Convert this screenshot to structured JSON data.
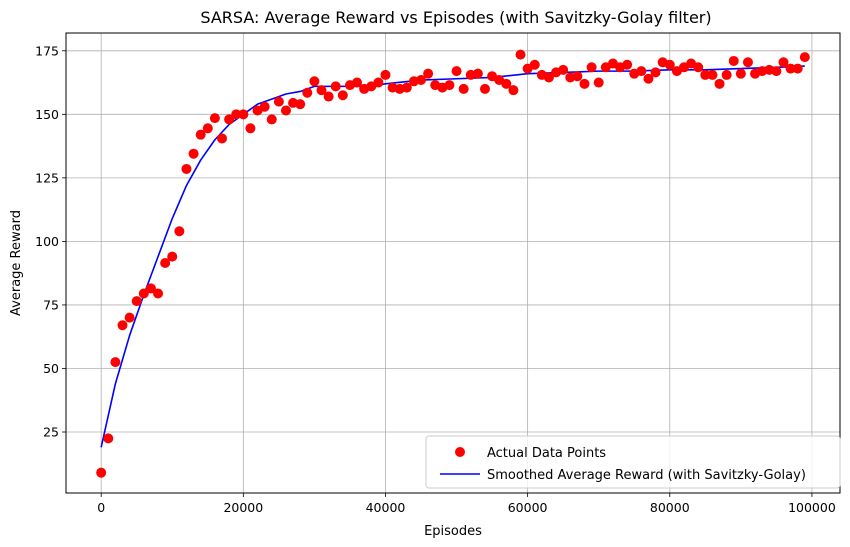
{
  "chart_data": {
    "type": "scatter",
    "title": "SARSA: Average Reward vs Episodes (with Savitzky-Golay filter)",
    "xlabel": "Episodes",
    "ylabel": "Average Reward",
    "xlim": [
      -4950,
      103950
    ],
    "ylim": [
      1,
      182
    ],
    "xticks": [
      0,
      20000,
      40000,
      60000,
      80000,
      100000
    ],
    "yticks": [
      25,
      50,
      75,
      100,
      125,
      150,
      175
    ],
    "grid": true,
    "legend_position": "lower-right",
    "series": [
      {
        "name": "Actual Data Points",
        "kind": "scatter",
        "color": "#ff0000",
        "x": [
          0,
          1000,
          2000,
          3000,
          4000,
          5000,
          6000,
          7000,
          8000,
          9000,
          10000,
          11000,
          12000,
          13000,
          14000,
          15000,
          16000,
          17000,
          18000,
          19000,
          20000,
          21000,
          22000,
          23000,
          24000,
          25000,
          26000,
          27000,
          28000,
          29000,
          30000,
          31000,
          32000,
          33000,
          34000,
          35000,
          36000,
          37000,
          38000,
          39000,
          40000,
          41000,
          42000,
          43000,
          44000,
          45000,
          46000,
          47000,
          48000,
          49000,
          50000,
          51000,
          52000,
          53000,
          54000,
          55000,
          56000,
          57000,
          58000,
          59000,
          60000,
          61000,
          62000,
          63000,
          64000,
          65000,
          66000,
          67000,
          68000,
          69000,
          70000,
          71000,
          72000,
          73000,
          74000,
          75000,
          76000,
          77000,
          78000,
          79000,
          80000,
          81000,
          82000,
          83000,
          84000,
          85000,
          86000,
          87000,
          88000,
          89000,
          90000,
          91000,
          92000,
          93000,
          94000,
          95000,
          96000,
          97000,
          98000,
          99000
        ],
        "y": [
          9,
          22.5,
          52.5,
          67,
          70,
          76.5,
          79.5,
          81.5,
          79.5,
          91.5,
          94,
          104,
          128.5,
          134.5,
          142,
          144.5,
          148.5,
          140.5,
          148,
          150,
          150,
          144.5,
          151.5,
          153,
          148,
          155,
          151.5,
          154.5,
          154,
          158.5,
          163,
          159.5,
          157,
          161,
          157.5,
          161.5,
          162.5,
          160,
          161,
          162.5,
          165.5,
          160.5,
          160,
          160.5,
          163,
          163.5,
          166,
          161.5,
          160.5,
          161.5,
          167,
          160,
          165.5,
          166,
          160,
          165,
          163.5,
          162,
          159.5,
          173.5,
          168,
          169.5,
          165.5,
          164.5,
          166.5,
          167.5,
          164.5,
          165,
          162,
          168.5,
          162.5,
          168.5,
          170,
          168.5,
          169.5,
          166,
          167,
          164,
          166.5,
          170.5,
          169.5,
          167,
          168.5,
          170,
          168.5,
          165.5,
          165.5,
          162,
          165.5,
          171,
          166,
          170.5,
          166,
          167,
          167.5,
          167,
          170.5,
          168,
          168,
          172.5
        ]
      },
      {
        "name": "Smoothed Average Reward (with Savitzky-Golay)",
        "kind": "line",
        "color": "#0000ff",
        "x": [
          0,
          2000,
          4000,
          6000,
          8000,
          10000,
          12000,
          14000,
          16000,
          18000,
          20000,
          22000,
          24000,
          26000,
          28000,
          30000,
          32000,
          34000,
          36000,
          38000,
          40000,
          45000,
          50000,
          55000,
          60000,
          65000,
          70000,
          75000,
          80000,
          85000,
          90000,
          95000,
          99000
        ],
        "y": [
          19,
          44,
          63,
          79,
          94,
          109,
          122,
          132,
          140,
          146,
          150,
          154,
          156,
          158,
          159,
          161,
          161,
          161,
          161,
          161,
          162,
          163.5,
          164,
          164.5,
          166,
          166.5,
          167,
          167,
          167.5,
          167.5,
          168,
          168.5,
          169
        ]
      }
    ]
  }
}
